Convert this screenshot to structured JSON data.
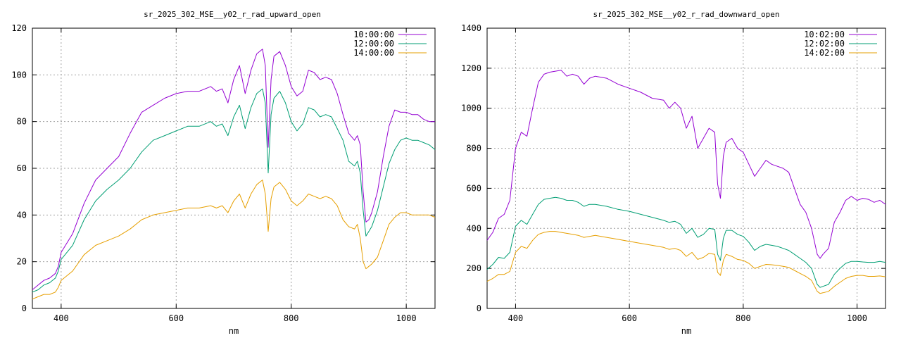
{
  "colors": {
    "series_1": "#9400d3",
    "series_2": "#009e73",
    "series_3": "#e69f00"
  },
  "chart_data": [
    {
      "type": "line",
      "title": "sr_2025_302_MSE__y02_r_rad_upward_open",
      "xlabel": "nm",
      "ylabel": "",
      "xlim": [
        350,
        1050
      ],
      "ylim": [
        0,
        120
      ],
      "xticks": [
        400,
        600,
        800,
        1000
      ],
      "yticks": [
        0,
        20,
        40,
        60,
        80,
        100,
        120
      ],
      "grid": true,
      "legend": "top-right",
      "series": [
        {
          "name": "10:00:00",
          "color": "#9400d3",
          "x": [
            350,
            360,
            370,
            380,
            390,
            395,
            400,
            420,
            440,
            460,
            480,
            500,
            520,
            540,
            560,
            580,
            600,
            620,
            640,
            660,
            670,
            680,
            690,
            700,
            710,
            720,
            730,
            740,
            750,
            755,
            760,
            765,
            770,
            780,
            790,
            800,
            810,
            820,
            830,
            840,
            850,
            860,
            870,
            880,
            890,
            900,
            910,
            915,
            920,
            925,
            930,
            935,
            940,
            950,
            960,
            970,
            980,
            990,
            1000,
            1010,
            1020,
            1030,
            1040,
            1050
          ],
          "y": [
            8,
            10,
            12,
            13,
            15,
            18,
            24,
            32,
            45,
            55,
            60,
            65,
            75,
            84,
            87,
            90,
            92,
            93,
            93,
            95,
            93,
            94,
            88,
            98,
            104,
            92,
            102,
            109,
            111,
            104,
            69,
            98,
            108,
            110,
            104,
            95,
            91,
            93,
            102,
            101,
            98,
            99,
            98,
            92,
            83,
            75,
            72,
            74,
            70,
            50,
            37,
            38,
            41,
            50,
            65,
            78,
            85,
            84,
            84,
            83,
            83,
            81,
            80,
            80
          ]
        },
        {
          "name": "12:00:00",
          "color": "#009e73",
          "x": [
            350,
            360,
            370,
            380,
            390,
            395,
            400,
            420,
            440,
            460,
            480,
            500,
            520,
            540,
            560,
            580,
            600,
            620,
            640,
            660,
            670,
            680,
            690,
            700,
            710,
            720,
            730,
            740,
            750,
            755,
            760,
            765,
            770,
            780,
            790,
            800,
            810,
            820,
            830,
            840,
            850,
            860,
            870,
            880,
            890,
            900,
            910,
            915,
            920,
            925,
            930,
            935,
            940,
            950,
            960,
            970,
            980,
            990,
            1000,
            1010,
            1020,
            1030,
            1040,
            1050
          ],
          "y": [
            7,
            8,
            10,
            11,
            13,
            16,
            21,
            27,
            38,
            46,
            51,
            55,
            60,
            67,
            72,
            74,
            76,
            78,
            78,
            80,
            78,
            79,
            74,
            82,
            87,
            77,
            86,
            92,
            94,
            88,
            58,
            83,
            90,
            93,
            88,
            80,
            76,
            79,
            86,
            85,
            82,
            83,
            82,
            77,
            72,
            63,
            61,
            63,
            58,
            42,
            31,
            33,
            35,
            42,
            52,
            62,
            68,
            72,
            73,
            72,
            72,
            71,
            70,
            68
          ]
        },
        {
          "name": "14:00:00",
          "color": "#e69f00",
          "x": [
            350,
            360,
            370,
            380,
            390,
            395,
            400,
            420,
            440,
            460,
            480,
            500,
            520,
            540,
            560,
            580,
            600,
            620,
            640,
            660,
            670,
            680,
            690,
            700,
            710,
            720,
            730,
            740,
            750,
            755,
            760,
            765,
            770,
            780,
            790,
            800,
            810,
            820,
            830,
            840,
            850,
            860,
            870,
            880,
            890,
            900,
            910,
            915,
            920,
            925,
            930,
            935,
            940,
            950,
            960,
            970,
            980,
            990,
            1000,
            1010,
            1020,
            1030,
            1040,
            1050
          ],
          "y": [
            4,
            5,
            6,
            6,
            7,
            9,
            12,
            16,
            23,
            27,
            29,
            31,
            34,
            38,
            40,
            41,
            42,
            43,
            43,
            44,
            43,
            44,
            41,
            46,
            49,
            43,
            49,
            53,
            55,
            49,
            33,
            47,
            52,
            54,
            51,
            46,
            44,
            46,
            49,
            48,
            47,
            48,
            47,
            44,
            38,
            35,
            34,
            36,
            30,
            20,
            17,
            18,
            19,
            22,
            29,
            36,
            39,
            41,
            41,
            40,
            40,
            40,
            40,
            39
          ]
        }
      ]
    },
    {
      "type": "line",
      "title": "sr_2025_302_MSE__y02_r_rad_downward_open",
      "xlabel": "nm",
      "ylabel": "",
      "xlim": [
        350,
        1050
      ],
      "ylim": [
        0,
        1400
      ],
      "xticks": [
        400,
        600,
        800,
        1000
      ],
      "yticks": [
        0,
        200,
        400,
        600,
        800,
        1000,
        1200,
        1400
      ],
      "grid": true,
      "legend": "top-right",
      "series": [
        {
          "name": "10:02:00",
          "color": "#9400d3",
          "x": [
            350,
            360,
            370,
            380,
            390,
            400,
            410,
            420,
            430,
            440,
            450,
            460,
            470,
            480,
            490,
            500,
            510,
            520,
            530,
            540,
            560,
            580,
            600,
            620,
            640,
            660,
            670,
            680,
            690,
            700,
            710,
            720,
            730,
            740,
            750,
            755,
            760,
            765,
            770,
            780,
            790,
            800,
            810,
            820,
            830,
            840,
            850,
            860,
            870,
            880,
            890,
            900,
            910,
            920,
            930,
            935,
            940,
            950,
            960,
            970,
            980,
            990,
            1000,
            1010,
            1020,
            1030,
            1040,
            1050
          ],
          "y": [
            340,
            380,
            450,
            470,
            540,
            800,
            880,
            860,
            1000,
            1130,
            1170,
            1180,
            1185,
            1190,
            1160,
            1170,
            1160,
            1120,
            1150,
            1160,
            1150,
            1120,
            1100,
            1080,
            1050,
            1040,
            1000,
            1030,
            1000,
            900,
            960,
            800,
            850,
            900,
            880,
            620,
            550,
            760,
            830,
            850,
            800,
            780,
            720,
            660,
            700,
            740,
            720,
            710,
            700,
            680,
            600,
            520,
            480,
            400,
            270,
            250,
            270,
            300,
            430,
            480,
            540,
            560,
            540,
            550,
            545,
            530,
            540,
            520
          ]
        },
        {
          "name": "12:02:00",
          "color": "#009e73",
          "x": [
            350,
            360,
            370,
            380,
            390,
            400,
            410,
            420,
            430,
            440,
            450,
            460,
            470,
            480,
            490,
            500,
            510,
            520,
            530,
            540,
            560,
            580,
            600,
            620,
            640,
            660,
            670,
            680,
            690,
            700,
            710,
            720,
            730,
            740,
            750,
            755,
            760,
            765,
            770,
            780,
            790,
            800,
            810,
            820,
            830,
            840,
            850,
            860,
            870,
            880,
            890,
            900,
            910,
            920,
            930,
            935,
            940,
            950,
            960,
            970,
            980,
            990,
            1000,
            1010,
            1020,
            1030,
            1040,
            1050
          ],
          "y": [
            195,
            220,
            255,
            250,
            280,
            410,
            440,
            420,
            470,
            520,
            545,
            550,
            555,
            550,
            540,
            540,
            530,
            510,
            520,
            520,
            510,
            495,
            485,
            470,
            455,
            440,
            430,
            435,
            420,
            375,
            400,
            355,
            370,
            400,
            395,
            270,
            240,
            350,
            390,
            390,
            370,
            360,
            330,
            290,
            310,
            320,
            315,
            310,
            300,
            290,
            270,
            250,
            230,
            200,
            120,
            105,
            110,
            120,
            170,
            200,
            225,
            235,
            235,
            232,
            230,
            230,
            235,
            230
          ]
        },
        {
          "name": "14:02:00",
          "color": "#e69f00",
          "x": [
            350,
            360,
            370,
            380,
            390,
            400,
            410,
            420,
            430,
            440,
            450,
            460,
            470,
            480,
            490,
            500,
            510,
            520,
            530,
            540,
            560,
            580,
            600,
            620,
            640,
            660,
            670,
            680,
            690,
            700,
            710,
            720,
            730,
            740,
            750,
            755,
            760,
            765,
            770,
            780,
            790,
            800,
            810,
            820,
            830,
            840,
            850,
            860,
            870,
            880,
            890,
            900,
            910,
            920,
            930,
            935,
            940,
            950,
            960,
            970,
            980,
            990,
            1000,
            1010,
            1020,
            1030,
            1040,
            1050
          ],
          "y": [
            135,
            150,
            170,
            170,
            185,
            280,
            310,
            300,
            340,
            370,
            380,
            385,
            385,
            380,
            375,
            370,
            365,
            355,
            360,
            365,
            355,
            345,
            335,
            325,
            315,
            305,
            295,
            300,
            290,
            260,
            280,
            245,
            255,
            275,
            270,
            180,
            165,
            240,
            270,
            260,
            245,
            240,
            225,
            200,
            210,
            220,
            218,
            215,
            210,
            205,
            190,
            175,
            160,
            140,
            85,
            75,
            78,
            85,
            110,
            130,
            150,
            160,
            165,
            165,
            160,
            160,
            162,
            158
          ]
        }
      ]
    }
  ]
}
